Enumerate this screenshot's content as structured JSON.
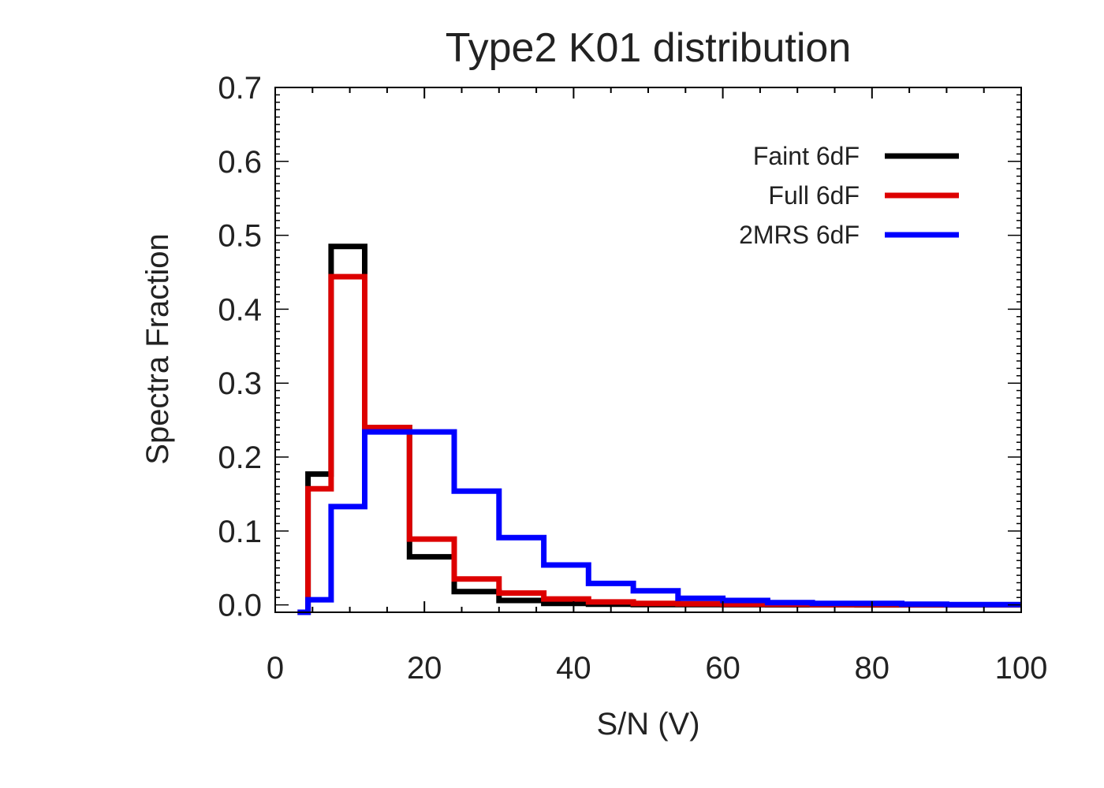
{
  "chart_data": {
    "type": "line",
    "title": "Type2 K01 distribution",
    "xlabel": "S/N (V)",
    "ylabel": "Spectra Fraction",
    "xlim": [
      0,
      100
    ],
    "ylim": [
      -0.01,
      0.7
    ],
    "xticks": [
      0,
      20,
      40,
      60,
      80,
      100
    ],
    "xtick_labels": [
      "0",
      "20",
      "40",
      "60",
      "80",
      "100"
    ],
    "yticks": [
      0.0,
      0.1,
      0.2,
      0.3,
      0.4,
      0.5,
      0.6,
      0.7
    ],
    "ytick_labels": [
      "0.0",
      "0.1",
      "0.2",
      "0.3",
      "0.4",
      "0.5",
      "0.6",
      "0.7"
    ],
    "grid": false,
    "legend_position": "top-right",
    "bin_edges": [
      3,
      4.4,
      7.5,
      12,
      18,
      24,
      30,
      36,
      42,
      48,
      54,
      60,
      66,
      72,
      78,
      84,
      90,
      96,
      100
    ],
    "series": [
      {
        "name": "Faint 6dF",
        "color": "#000000",
        "values": [
          -0.01,
          0.177,
          0.485,
          0.24,
          0.065,
          0.018,
          0.006,
          0.002,
          0.001,
          0.0005,
          0.0003,
          0.0002,
          0.0001,
          0.0001,
          0.0,
          0.0,
          0.0,
          0.0
        ]
      },
      {
        "name": "Full 6dF",
        "color": "#dd0000",
        "values": [
          -0.01,
          0.157,
          0.444,
          0.24,
          0.089,
          0.035,
          0.016,
          0.008,
          0.004,
          0.002,
          0.0015,
          0.001,
          0.0008,
          0.0005,
          0.0003,
          0.0002,
          0.0001,
          0.0001
        ]
      },
      {
        "name": "2MRS 6dF",
        "color": "#0000ff",
        "values": [
          -0.01,
          0.007,
          0.133,
          0.234,
          0.234,
          0.154,
          0.091,
          0.054,
          0.029,
          0.019,
          0.009,
          0.006,
          0.003,
          0.002,
          0.002,
          0.001,
          0.0005,
          0.0005
        ]
      }
    ]
  }
}
